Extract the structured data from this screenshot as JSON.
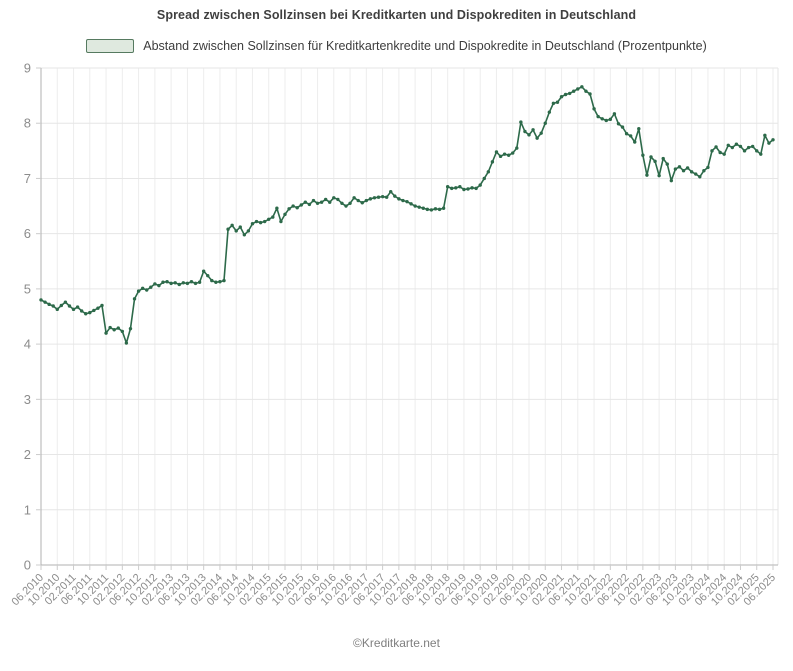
{
  "title": "Spread zwischen Sollzinsen bei Kreditkarten und Dispokrediten in Deutschland",
  "legend": {
    "label": "Abstand zwischen Sollzinsen für Kreditkartenkredite und Dispokredite in Deutschland (Prozentpunkte)",
    "swatch_fill": "#dfe9df",
    "swatch_border": "#567a60"
  },
  "footer": {
    "credit": "©Kreditkarte.net"
  },
  "colors": {
    "line": "#2d6a4a",
    "marker": "#2d6a4a",
    "grid_horizontal": "#e6e6e6",
    "grid_vertical": "#ededed",
    "axis": "#b0b0b0",
    "tick": "#cccccc",
    "axis_label": "#8c8c8c",
    "title_text": "#3f3f3f",
    "legend_text": "#3d3d3d",
    "footer_text": "#7f7f7f",
    "background": "#ffffff"
  },
  "chart_data": {
    "type": "line",
    "title": "Spread zwischen Sollzinsen bei Kreditkarten und Dispokrediten in Deutschland",
    "series_name": "Abstand zwischen Sollzinsen für Kreditkartenkredite und Dispokredite in Deutschland (Prozentpunkte)",
    "unit": "Prozentpunkte",
    "frequency": "monthly",
    "start_month": "06.2010",
    "end_month": "06.2025",
    "ylim": [
      0,
      9
    ],
    "y_ticks": [
      0,
      1,
      2,
      3,
      4,
      5,
      6,
      7,
      8,
      9
    ],
    "grid": true,
    "legend_position": "top",
    "marker": "circle",
    "x_tick_labels": [
      "06.2010",
      "10.2010",
      "02.2011",
      "06.2011",
      "10.2011",
      "02.2012",
      "06.2012",
      "10.2012",
      "02.2013",
      "06.2013",
      "10.2013",
      "02.2014",
      "06.2014",
      "10.2014",
      "02.2015",
      "06.2015",
      "10.2015",
      "02.2016",
      "06.2016",
      "10.2016",
      "02.2017",
      "06.2017",
      "10.2017",
      "02.2018",
      "06.2018",
      "10.2018",
      "02.2019",
      "06.2019",
      "10.2019",
      "02.2020",
      "06.2020",
      "10.2020",
      "02.2021",
      "06.2021",
      "10.2021",
      "02.2022",
      "06.2022",
      "10.2022",
      "02.2023",
      "06.2023",
      "10.2023",
      "02.2024",
      "06.2024",
      "10.2024",
      "02.2025",
      "06.2025"
    ],
    "x_tick_every_n_months": 4,
    "values": [
      4.8,
      4.76,
      4.72,
      4.69,
      4.63,
      4.7,
      4.76,
      4.69,
      4.63,
      4.67,
      4.6,
      4.55,
      4.57,
      4.61,
      4.65,
      4.7,
      4.2,
      4.3,
      4.26,
      4.29,
      4.23,
      4.02,
      4.28,
      4.82,
      4.96,
      5.01,
      4.98,
      5.03,
      5.09,
      5.06,
      5.12,
      5.13,
      5.1,
      5.11,
      5.08,
      5.11,
      5.1,
      5.13,
      5.1,
      5.12,
      5.32,
      5.24,
      5.15,
      5.12,
      5.13,
      5.15,
      6.08,
      6.15,
      6.05,
      6.12,
      5.98,
      6.05,
      6.18,
      6.22,
      6.2,
      6.22,
      6.26,
      6.3,
      6.46,
      6.22,
      6.35,
      6.45,
      6.5,
      6.47,
      6.52,
      6.57,
      6.53,
      6.6,
      6.55,
      6.57,
      6.62,
      6.57,
      6.65,
      6.62,
      6.55,
      6.5,
      6.55,
      6.65,
      6.6,
      6.56,
      6.6,
      6.63,
      6.65,
      6.66,
      6.67,
      6.66,
      6.76,
      6.68,
      6.63,
      6.6,
      6.58,
      6.54,
      6.5,
      6.48,
      6.46,
      6.44,
      6.43,
      6.45,
      6.44,
      6.46,
      6.85,
      6.82,
      6.83,
      6.85,
      6.8,
      6.81,
      6.83,
      6.82,
      6.88,
      7.0,
      7.12,
      7.3,
      7.48,
      7.4,
      7.44,
      7.42,
      7.46,
      7.55,
      8.02,
      7.85,
      7.79,
      7.88,
      7.73,
      7.82,
      8.0,
      8.2,
      8.36,
      8.38,
      8.48,
      8.52,
      8.54,
      8.58,
      8.62,
      8.66,
      8.58,
      8.53,
      8.26,
      8.12,
      8.08,
      8.05,
      8.07,
      8.17,
      7.99,
      7.93,
      7.81,
      7.77,
      7.66,
      7.9,
      7.42,
      7.06,
      7.39,
      7.31,
      7.05,
      7.36,
      7.26,
      6.96,
      7.17,
      7.21,
      7.14,
      7.19,
      7.12,
      7.08,
      7.03,
      7.14,
      7.2,
      7.5,
      7.57,
      7.47,
      7.44,
      7.6,
      7.56,
      7.62,
      7.58,
      7.5,
      7.56,
      7.58,
      7.5,
      7.44,
      7.78,
      7.64,
      7.7
    ]
  }
}
